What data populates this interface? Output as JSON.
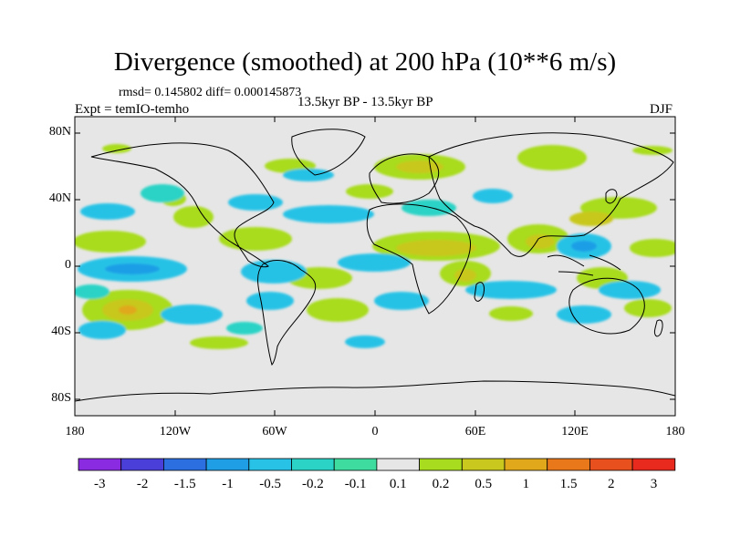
{
  "header": {
    "title": "Divergence (smoothed) at 200 hPa (10**6 m/s)",
    "rmsd_line": "rmsd= 0.145802 diff= 0.000145873",
    "experiment": "Expt = temIO-temho",
    "period": "13.5kyr BP - 13.5kyr BP",
    "season": "DJF"
  },
  "map": {
    "lat_labels": [
      "80N",
      "40N",
      "0",
      "40S",
      "80S"
    ],
    "lon_labels": [
      "180",
      "120W",
      "60W",
      "0",
      "60E",
      "120E",
      "180"
    ],
    "background_color": "#e6e6e6"
  },
  "colorbar": {
    "labels": [
      "-3",
      "-2",
      "-1.5",
      "-1",
      "-0.5",
      "-0.2",
      "-0.1",
      "0.1",
      "0.2",
      "0.5",
      "1",
      "1.5",
      "2",
      "3"
    ],
    "colors": [
      "#8a2be2",
      "#4b3fd9",
      "#2b6fe0",
      "#1f9ee6",
      "#27c2e6",
      "#2bd3c6",
      "#3fdca0",
      "#e6e6e6",
      "#a8dc1e",
      "#c8c81e",
      "#e0a81a",
      "#e8781a",
      "#e8501e",
      "#e82a1e"
    ]
  }
}
